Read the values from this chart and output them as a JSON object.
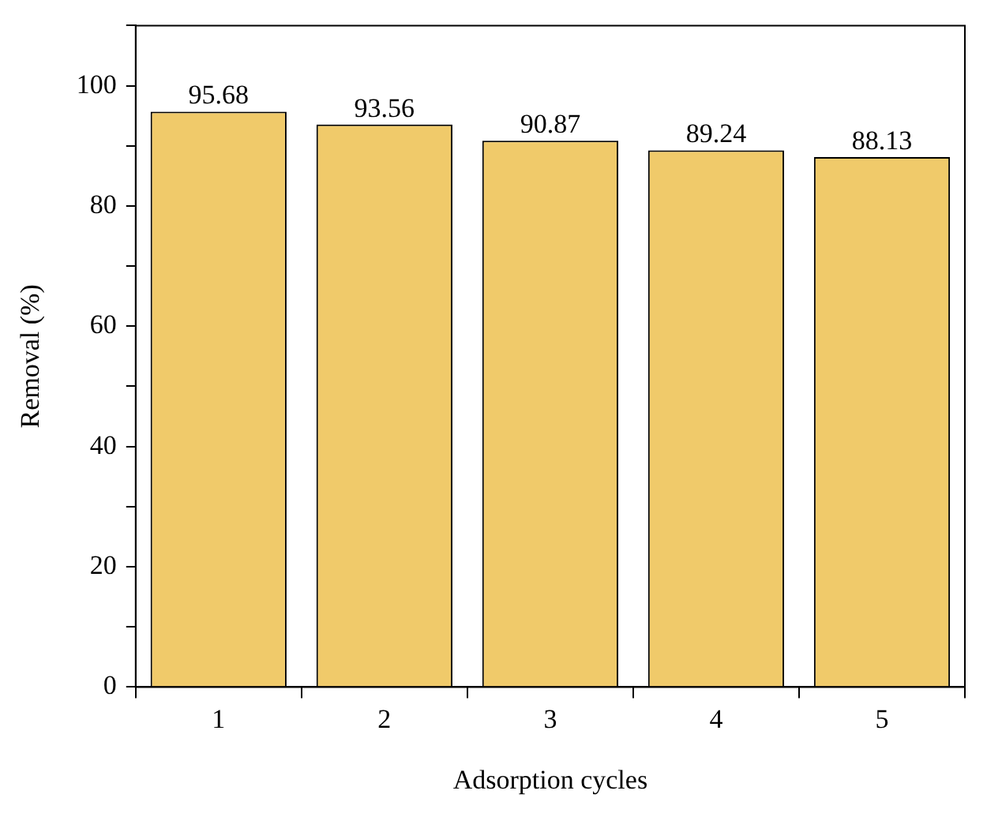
{
  "chart_data": {
    "type": "bar",
    "xlabel": "Adsorption cycles",
    "ylabel": "Removal (%)",
    "categories": [
      "1",
      "2",
      "3",
      "4",
      "5"
    ],
    "values": [
      95.68,
      93.56,
      90.87,
      89.24,
      88.13
    ],
    "color": "#f0ca6a",
    "ylim": [
      0,
      110
    ],
    "yticks": [
      0,
      {
        "value": 10,
        "label": null
      },
      20,
      {
        "value": 30,
        "label": null
      },
      40,
      {
        "value": 50,
        "label": null
      },
      60,
      {
        "value": 70,
        "label": null
      },
      80,
      {
        "value": 90,
        "label": null
      },
      100,
      {
        "value": 110,
        "label": null
      }
    ],
    "data_labels": true,
    "grid": false,
    "legend": false
  }
}
